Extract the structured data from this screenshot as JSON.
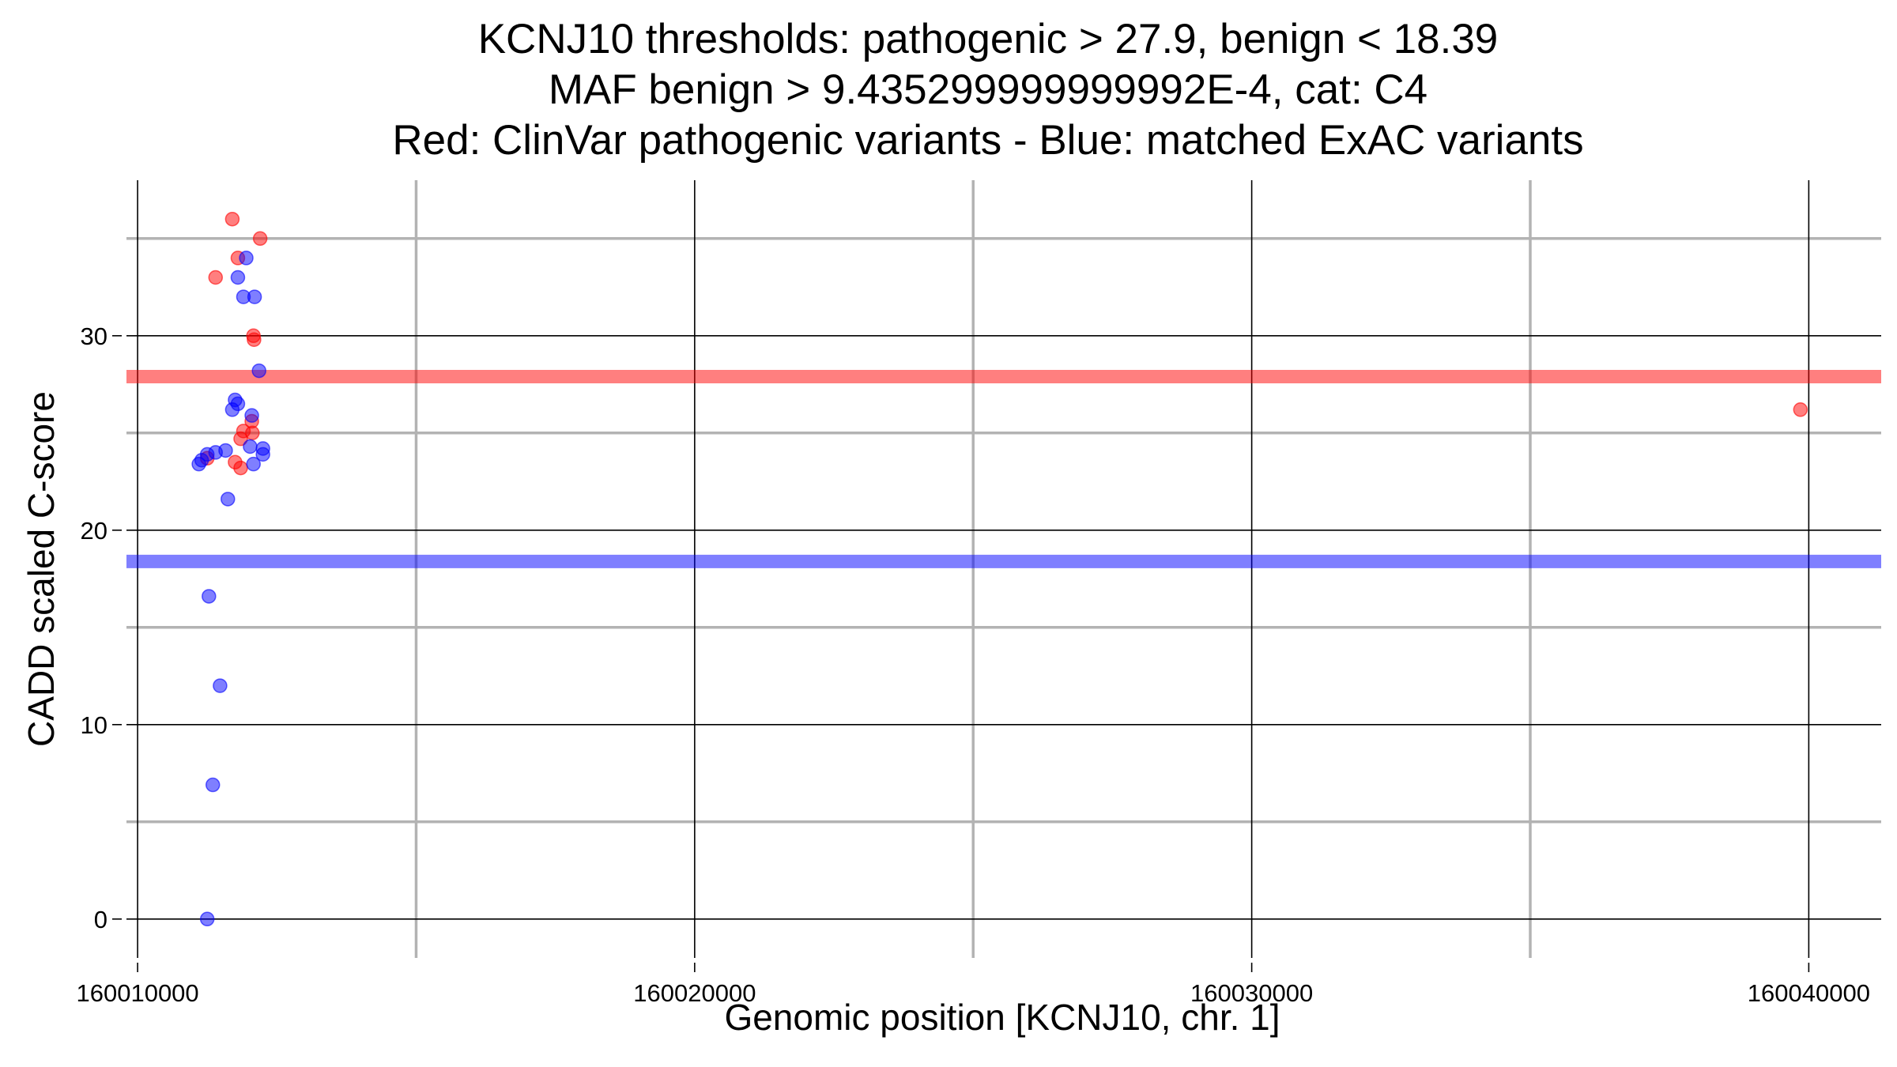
{
  "chart_data": {
    "type": "scatter",
    "title_lines": [
      "KCNJ10 thresholds: pathogenic > 27.9, benign < 18.39",
      "MAF benign > 9.435299999999992E-4, cat: C4",
      "Red: ClinVar pathogenic variants - Blue: matched ExAC variants"
    ],
    "xlabel": "Genomic position [KCNJ10, chr. 1]",
    "ylabel": "CADD scaled C-score",
    "xlim": [
      160009800,
      160041300
    ],
    "ylim": [
      -2,
      38
    ],
    "x_ticks": [
      160010000,
      160020000,
      160030000,
      160040000
    ],
    "x_tick_labels": [
      "160010000",
      "160020000",
      "160030000",
      "160040000"
    ],
    "y_ticks": [
      0,
      10,
      20,
      30
    ],
    "y_tick_labels": [
      "0",
      "10",
      "20",
      "30"
    ],
    "x_minor_ticks": [
      160015000,
      160025000,
      160035000
    ],
    "y_minor_ticks": [
      5,
      15,
      25,
      35
    ],
    "grid": true,
    "thresholds": [
      {
        "name": "pathogenic",
        "value": 27.9,
        "color": "#ff0000"
      },
      {
        "name": "benign",
        "value": 18.39,
        "color": "#0000ff"
      }
    ],
    "series": [
      {
        "color": "#ff0000",
        "points": [
          {
            "x": 160011700,
            "y": 36.0
          },
          {
            "x": 160012200,
            "y": 35.0
          },
          {
            "x": 160011800,
            "y": 34.0
          },
          {
            "x": 160011400,
            "y": 33.0
          },
          {
            "x": 160012080,
            "y": 30.0
          },
          {
            "x": 160012090,
            "y": 29.8
          },
          {
            "x": 160012050,
            "y": 25.6
          },
          {
            "x": 160012060,
            "y": 25.0
          },
          {
            "x": 160011900,
            "y": 25.1
          },
          {
            "x": 160011850,
            "y": 24.7
          },
          {
            "x": 160011750,
            "y": 23.5
          },
          {
            "x": 160011850,
            "y": 23.2
          },
          {
            "x": 160011250,
            "y": 23.7
          },
          {
            "x": 160039850,
            "y": 26.2
          }
        ]
      },
      {
        "color": "#0000ff",
        "points": [
          {
            "x": 160011950,
            "y": 34.0
          },
          {
            "x": 160011800,
            "y": 33.0
          },
          {
            "x": 160011900,
            "y": 32.0
          },
          {
            "x": 160012100,
            "y": 32.0
          },
          {
            "x": 160012180,
            "y": 28.2
          },
          {
            "x": 160011750,
            "y": 26.7
          },
          {
            "x": 160011800,
            "y": 26.5
          },
          {
            "x": 160011700,
            "y": 26.2
          },
          {
            "x": 160012050,
            "y": 25.9
          },
          {
            "x": 160012020,
            "y": 24.3
          },
          {
            "x": 160012250,
            "y": 24.2
          },
          {
            "x": 160012250,
            "y": 23.9
          },
          {
            "x": 160012080,
            "y": 23.4
          },
          {
            "x": 160011580,
            "y": 24.1
          },
          {
            "x": 160011400,
            "y": 24.0
          },
          {
            "x": 160011250,
            "y": 23.9
          },
          {
            "x": 160011150,
            "y": 23.6
          },
          {
            "x": 160011100,
            "y": 23.4
          },
          {
            "x": 160011620,
            "y": 21.6
          },
          {
            "x": 160011280,
            "y": 16.6
          },
          {
            "x": 160011480,
            "y": 12.0
          },
          {
            "x": 160011350,
            "y": 6.9
          },
          {
            "x": 160011250,
            "y": 0.0
          }
        ]
      }
    ]
  }
}
